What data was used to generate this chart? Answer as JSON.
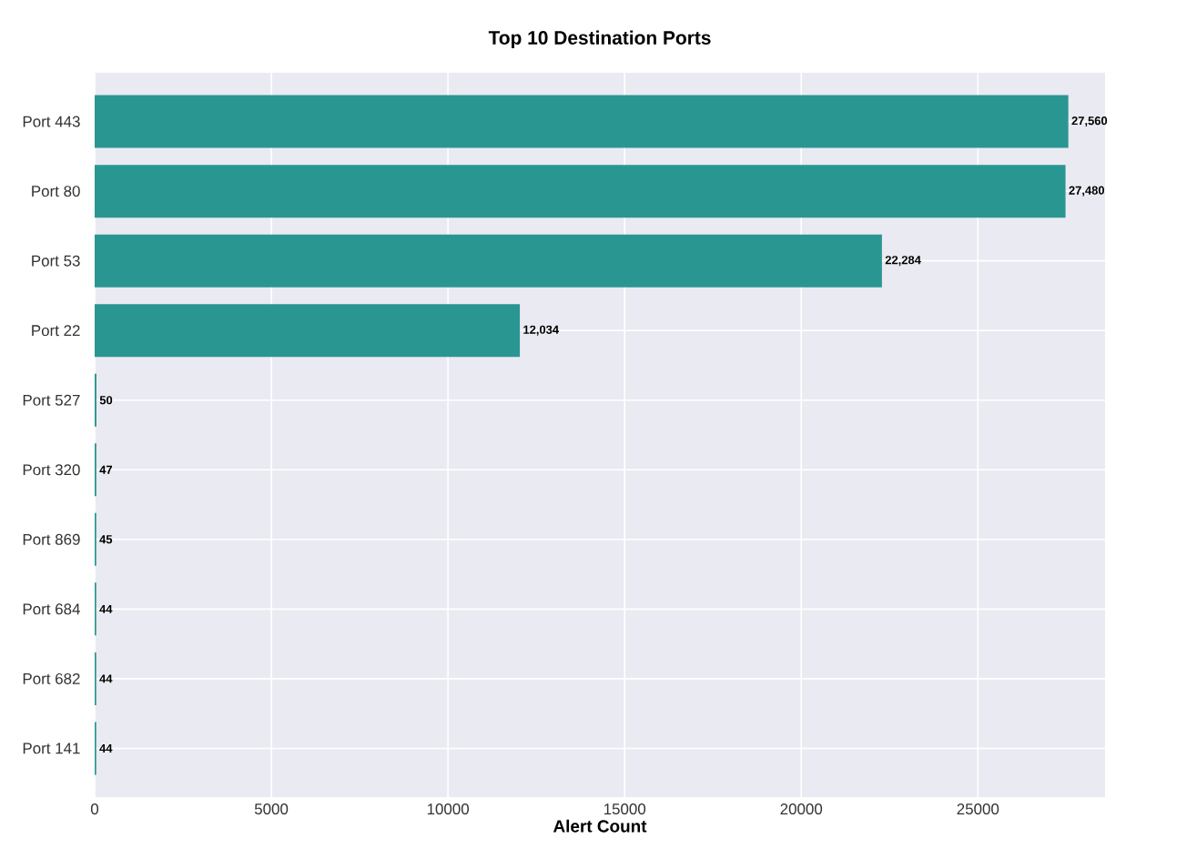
{
  "chart_data": {
    "type": "bar",
    "orientation": "horizontal",
    "title": "Top 10 Destination Ports",
    "xlabel": "Alert Count",
    "categories": [
      "Port 443",
      "Port 80",
      "Port 53",
      "Port 22",
      "Port 527",
      "Port 320",
      "Port 869",
      "Port 684",
      "Port 682",
      "Port 141"
    ],
    "values": [
      27560,
      27480,
      22284,
      12034,
      50,
      47,
      45,
      44,
      44,
      44
    ],
    "value_labels": [
      "27,560",
      "27,480",
      "22,284",
      "12,034",
      "50",
      "47",
      "45",
      "44",
      "44",
      "44"
    ],
    "color": "#2a9692",
    "xlim": [
      0,
      28600
    ],
    "xticks": [
      0,
      5000,
      10000,
      15000,
      20000,
      25000
    ],
    "grid": true
  }
}
